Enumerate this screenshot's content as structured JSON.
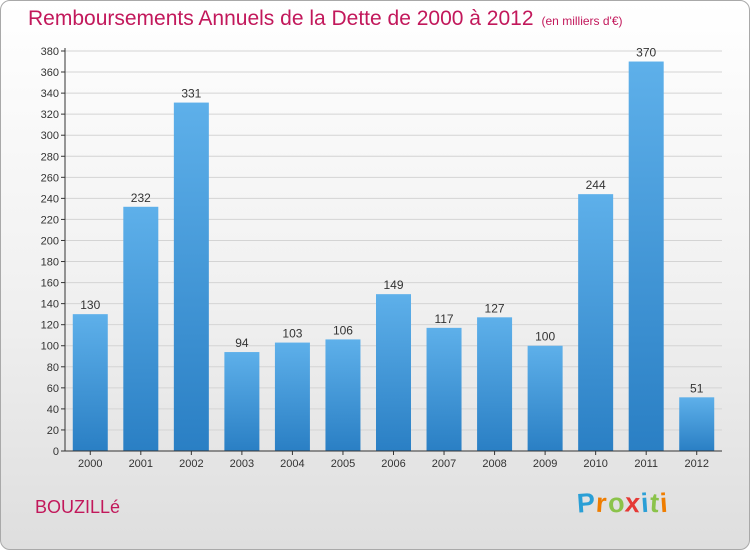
{
  "title": "Remboursements Annuels de la Dette de 2000 à 2012",
  "subtitle": "(en milliers d'€)",
  "commune": "BOUZILLé",
  "logo": {
    "letters": [
      "P",
      "r",
      "o",
      "x",
      "i",
      "t",
      "i"
    ],
    "colors": [
      "#2a9fd6",
      "#ef7d00",
      "#8bc34a",
      "#e53935",
      "#2a9fd6",
      "#8bc34a",
      "#ef7d00"
    ]
  },
  "colors": {
    "title": "#c2185b",
    "bar_light": "#5eb0ea",
    "bar_dark": "#2a7fc4",
    "grid": "#d4d4d4",
    "axis": "#333333"
  },
  "chart_data": {
    "type": "bar",
    "categories": [
      "2000",
      "2001",
      "2002",
      "2003",
      "2004",
      "2005",
      "2006",
      "2007",
      "2008",
      "2009",
      "2010",
      "2011",
      "2012"
    ],
    "values": [
      130,
      232,
      331,
      94,
      103,
      106,
      149,
      117,
      127,
      100,
      244,
      370,
      51
    ],
    "title": "Remboursements Annuels de la Dette de 2000 à 2012",
    "xlabel": "",
    "ylabel": "",
    "ylim": [
      0,
      380
    ],
    "ytick_step": 20,
    "grid": true,
    "legend": "none"
  }
}
